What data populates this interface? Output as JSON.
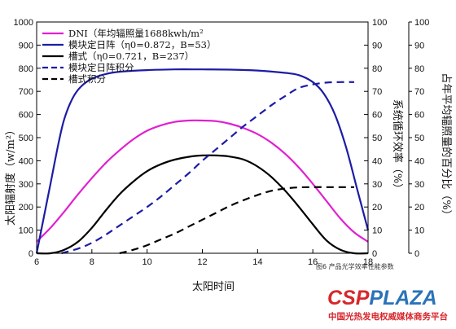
{
  "chart_data": {
    "type": "line",
    "xlabel": "太阳时间",
    "ylabel_left": "太阳辐射度（w/m²）",
    "ylabel_right1": "系统循环效率（%）",
    "ylabel_right2": "占年平均辐照量的百分比（%）",
    "xlim": [
      6,
      18
    ],
    "ylim_left": [
      0,
      1000
    ],
    "ylim_right1": [
      0,
      100
    ],
    "ylim_right2": [
      0,
      100
    ],
    "x_ticks": [
      "6",
      "8",
      "10",
      "12",
      "14",
      "16",
      "18"
    ],
    "y_ticks_left": [
      "0",
      "100",
      "200",
      "300",
      "400",
      "500",
      "600",
      "700",
      "800",
      "900",
      "1000"
    ],
    "y_ticks_right1": [
      "0",
      "10",
      "20",
      "30",
      "40",
      "50",
      "60",
      "70",
      "80",
      "90",
      "100"
    ],
    "y_ticks_right2": [
      "0",
      "10",
      "20",
      "30",
      "40",
      "50",
      "60",
      "70",
      "80",
      "90",
      "100"
    ],
    "legend_position": "top-left",
    "series": [
      {
        "name": "DNI（年均辐照量1688kwh/m²",
        "color": "#e020d0",
        "style": "solid",
        "axis": "left",
        "x": [
          6,
          6.5,
          7,
          7.5,
          8,
          8.5,
          9,
          9.5,
          10,
          10.5,
          11,
          11.5,
          12,
          12.5,
          13,
          13.5,
          14,
          14.5,
          15,
          15.5,
          16,
          16.5,
          17,
          17.5,
          18
        ],
        "y": [
          50,
          110,
          180,
          255,
          325,
          390,
          445,
          493,
          530,
          553,
          568,
          574,
          574,
          571,
          560,
          541,
          515,
          478,
          430,
          370,
          300,
          225,
          150,
          90,
          50
        ]
      },
      {
        "name": "模块定日阵（η0=0.872，B=53）",
        "color": "#1c1ca6",
        "style": "solid",
        "axis": "right1",
        "x": [
          6,
          6.2,
          6.5,
          6.8,
          7,
          7.3,
          7.6,
          8,
          8.5,
          9,
          10,
          11,
          12,
          13,
          14,
          15,
          15.5,
          16,
          16.4,
          16.8,
          17.2,
          17.6,
          18
        ],
        "y": [
          0,
          12,
          30,
          48,
          58,
          67,
          72,
          75.5,
          77.5,
          78.5,
          79.2,
          79.5,
          79.5,
          79.4,
          79,
          78,
          77,
          74,
          69,
          60,
          46,
          28,
          10
        ]
      },
      {
        "name": "槽式（η0=0.721，B=237）",
        "color": "#000000",
        "style": "solid",
        "axis": "right1",
        "x": [
          6,
          6.5,
          7,
          7.5,
          8,
          8.5,
          9,
          9.5,
          10,
          10.5,
          11,
          11.5,
          12,
          12.5,
          13,
          13.5,
          14,
          14.5,
          15,
          15.5,
          16,
          16.5,
          17,
          17.5,
          18
        ],
        "y": [
          0,
          0,
          1.5,
          5,
          11,
          18.5,
          25.5,
          31,
          35.5,
          38.5,
          40.5,
          41.7,
          42.3,
          42.3,
          41.8,
          40.5,
          37.5,
          33,
          27,
          20,
          12.5,
          5.5,
          1.5,
          0,
          0
        ]
      },
      {
        "name": "模块定日阵积分",
        "color": "#1c1ca6",
        "style": "dashed",
        "axis": "right2",
        "x": [
          6.9,
          7.5,
          8,
          8.5,
          9,
          9.5,
          10,
          10.5,
          11,
          11.5,
          12,
          12.5,
          13,
          13.5,
          14,
          14.5,
          15,
          15.5,
          16,
          16.5,
          17,
          17.5
        ],
        "y": [
          0,
          2,
          4.5,
          8,
          12,
          16,
          20,
          24.5,
          29.5,
          34.5,
          40,
          45,
          50,
          55,
          59.5,
          64,
          68,
          71.5,
          73,
          73.8,
          74,
          74
        ]
      },
      {
        "name": "槽式积分",
        "color": "#000000",
        "style": "dashed",
        "axis": "right2",
        "x": [
          9,
          9.5,
          10,
          10.5,
          11,
          11.5,
          12,
          12.5,
          13,
          13.5,
          14,
          14.5,
          15,
          15.5,
          16,
          16.5,
          17,
          17.5
        ],
        "y": [
          0,
          1.5,
          3.5,
          6,
          8.5,
          11.5,
          14.5,
          17.5,
          20.5,
          23,
          25.2,
          27,
          28,
          28.5,
          28.6,
          28.6,
          28.6,
          28.6
        ]
      }
    ]
  },
  "caption": "图6 产品光学效率性能参数",
  "logo": {
    "main": "CSPPLAZA",
    "sub": "中国光热发电权威媒体商务平台"
  }
}
